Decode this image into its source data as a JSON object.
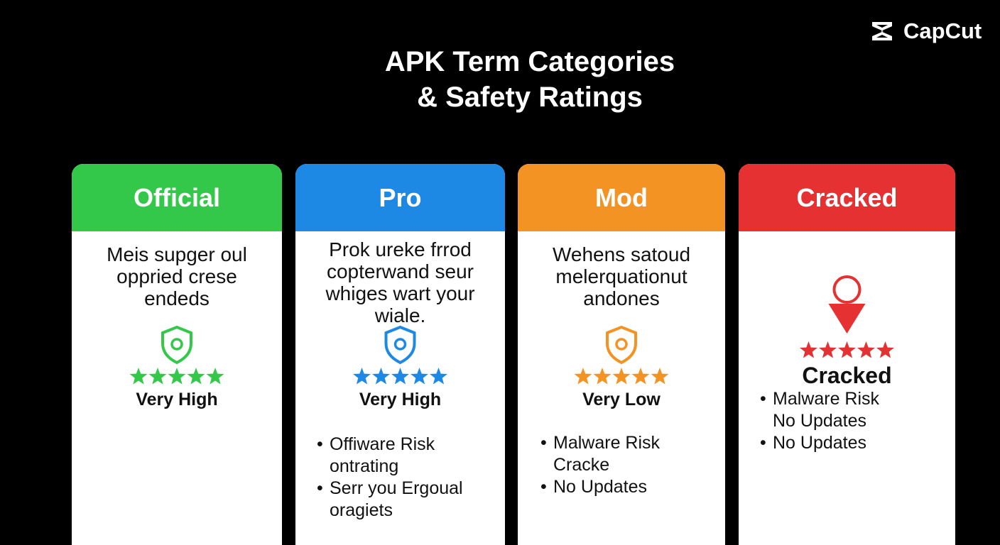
{
  "logo": "CapCut",
  "title": [
    "APK Term Categories",
    "& Safety Ratings"
  ],
  "cards": [
    {
      "header": "Official",
      "color": "#34c84a",
      "description": [
        "Meis supger oul",
        "oppried crese",
        "endeds"
      ],
      "stars": 5,
      "rating": "Very High",
      "bullets": []
    },
    {
      "header": "Pro",
      "color": "#1e88e5",
      "description": [
        "Prok ureke frrod",
        "copterwand seur",
        "whiges wart your",
        "wiale."
      ],
      "stars": 5,
      "rating": "Very High",
      "bullets": [
        [
          "Offiware Risk",
          "ontrating"
        ],
        [
          "Serr you Ergoual",
          "oragiets"
        ]
      ]
    },
    {
      "header": "Mod",
      "color": "#f39324",
      "description": [
        "Wehens satoud",
        "melerquationut",
        "andones"
      ],
      "stars": 5,
      "rating": "Very Low",
      "bullets": [
        [
          "Malware Risk",
          "Cracke"
        ],
        [
          "No Updates"
        ]
      ]
    },
    {
      "header": "Cracked",
      "color": "#e53131",
      "description": [],
      "stars": 5,
      "rating": "Cracked",
      "bullets": [
        [
          "Malware Risk",
          "No Updates"
        ],
        [
          "No Updates"
        ]
      ]
    }
  ]
}
